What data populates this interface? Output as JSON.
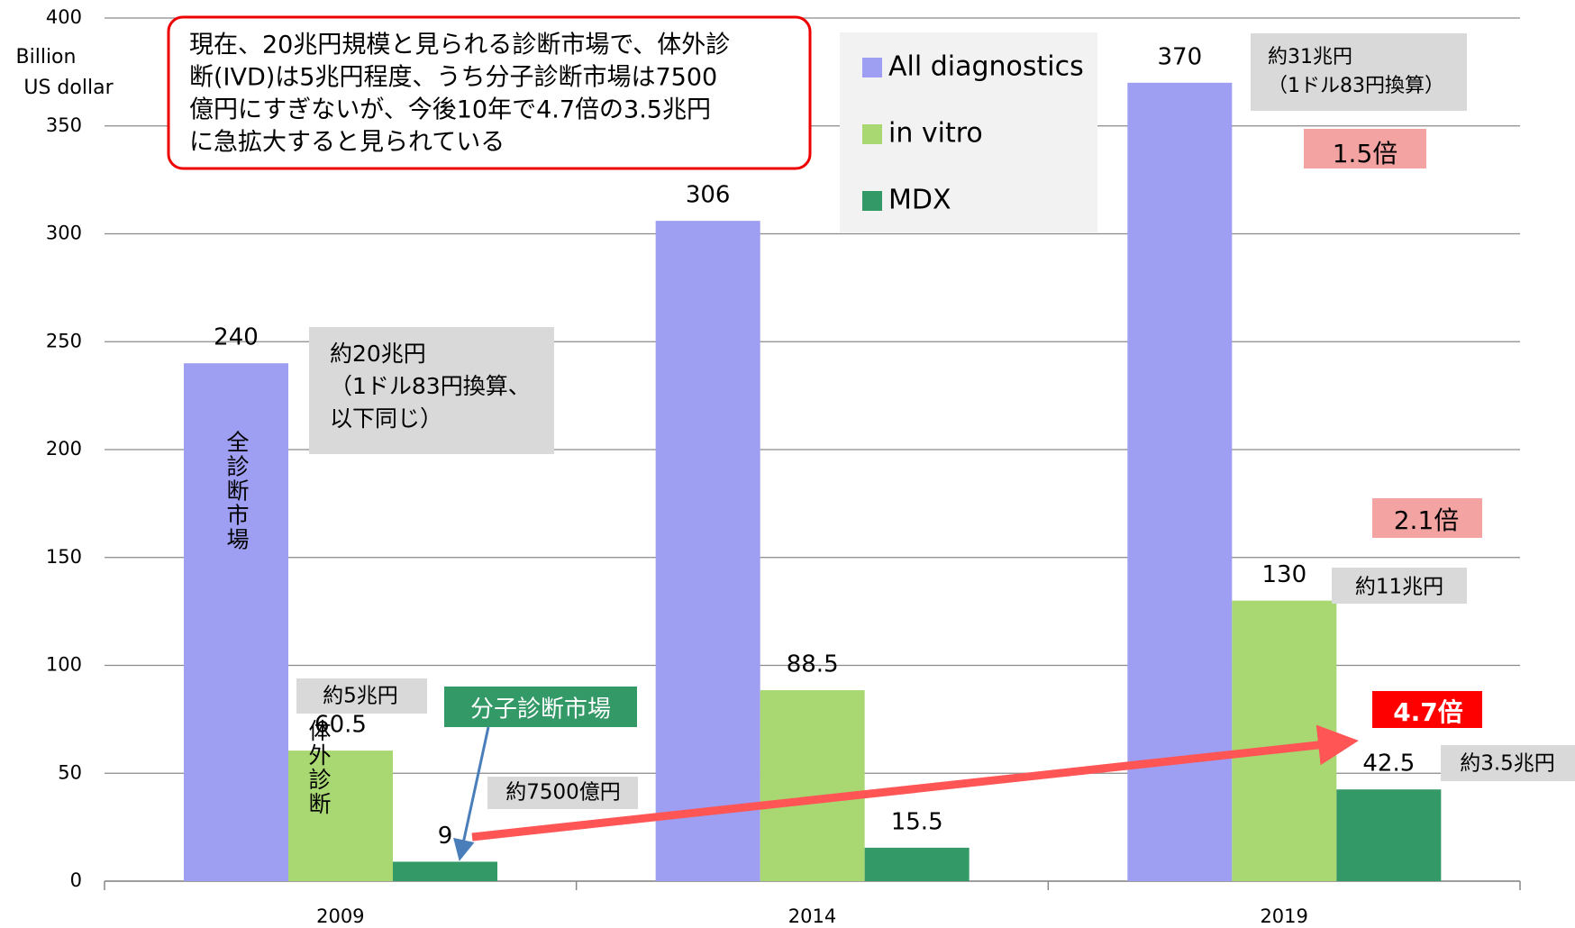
{
  "chart_data": {
    "type": "bar",
    "ylabel": [
      "Billion",
      "US dollar"
    ],
    "categories": [
      "2009",
      "2014",
      "2019"
    ],
    "series": [
      {
        "name": "All diagnostics",
        "color": "#9e9ef2",
        "values": [
          240,
          306,
          370
        ]
      },
      {
        "name": "in vitro",
        "color": "#a9d873",
        "values": [
          60.5,
          88.5,
          130
        ]
      },
      {
        "name": "MDX",
        "color": "#339966",
        "values": [
          9,
          15.5,
          42.5
        ]
      }
    ],
    "ylim": [
      0,
      400
    ],
    "yticks": [
      0,
      50,
      100,
      150,
      200,
      250,
      300,
      350,
      400
    ],
    "grid": true,
    "annotations": [
      [
        "現在、20兆円規模と見られる診断市場で、体外診",
        "断(IVD)は5兆円程度、うち分子診断市場は7500",
        "億円にすぎないが、今後10年で4.7倍の3.5兆円",
        "に急拡大すると見られている"
      ],
      [
        "約20兆円",
        "（1ドル83円換算、",
        "以下同じ）"
      ],
      [
        "約31兆円",
        "（1ドル83円換算）"
      ],
      [
        "1.5倍"
      ],
      [
        "2.1倍"
      ],
      [
        "約11兆円"
      ],
      [
        "4.7倍"
      ],
      [
        "約3.5兆円"
      ],
      [
        "約5兆円"
      ],
      [
        "分子診断市場"
      ],
      [
        "約7500億円"
      ],
      [
        "全診断市場"
      ],
      [
        "体外診断"
      ]
    ]
  }
}
